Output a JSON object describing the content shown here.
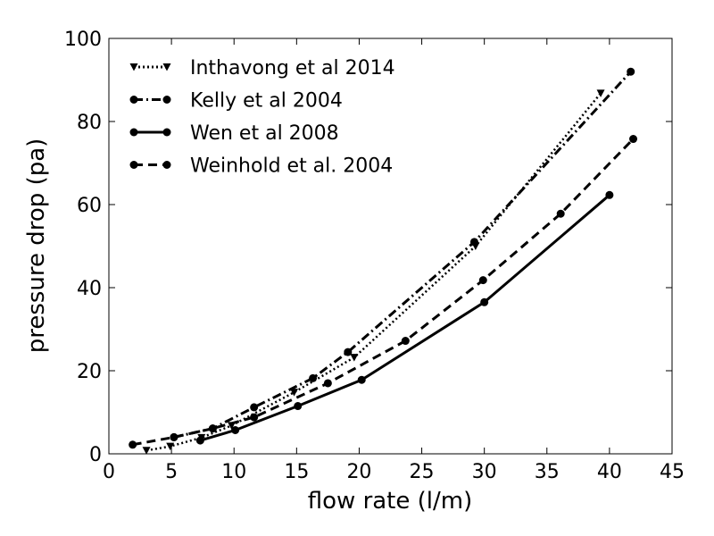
{
  "chart_data": {
    "type": "line",
    "xlabel": "flow rate (l/m)",
    "ylabel": "pressure drop (pa)",
    "xlim": [
      0,
      45
    ],
    "ylim": [
      0,
      100
    ],
    "xticks": [
      0,
      5,
      10,
      15,
      20,
      25,
      30,
      35,
      40,
      45
    ],
    "yticks": [
      0,
      20,
      40,
      60,
      80,
      100
    ],
    "grid": false,
    "legend_position": "top-left",
    "series": [
      {
        "name": "Inthavong et al 2014",
        "line_style": "dotted",
        "marker": "triangle-down",
        "color": "#000000",
        "x": [
          3,
          4.9,
          7.4,
          9.8,
          14.8,
          19.6,
          29.3,
          39.3
        ],
        "y": [
          0.8,
          1.8,
          3.9,
          6.8,
          14.8,
          23.2,
          50.0,
          86.8
        ]
      },
      {
        "name": "Kelly et al 2004",
        "line_style": "dashdot",
        "marker": "circle",
        "color": "#000000",
        "x": [
          5.2,
          8.3,
          11.6,
          16.3,
          19.1,
          29.2,
          41.7
        ],
        "y": [
          4.0,
          6.1,
          11.2,
          18.2,
          24.5,
          51.0,
          92.0
        ]
      },
      {
        "name": "Wen et al 2008",
        "line_style": "solid",
        "marker": "circle",
        "color": "#000000",
        "x": [
          7.3,
          10.1,
          15.1,
          20.2,
          30.0,
          40.0
        ],
        "y": [
          3.2,
          5.7,
          11.5,
          17.8,
          36.5,
          62.3
        ]
      },
      {
        "name": "Weinhold et al. 2004",
        "line_style": "dashed",
        "marker": "circle",
        "color": "#000000",
        "x": [
          1.9,
          5.2,
          8.3,
          11.6,
          17.5,
          23.7,
          29.9,
          36.1,
          41.9
        ],
        "y": [
          2.2,
          4.0,
          6.1,
          8.8,
          17.0,
          27.2,
          41.8,
          57.8,
          75.8
        ]
      }
    ]
  }
}
